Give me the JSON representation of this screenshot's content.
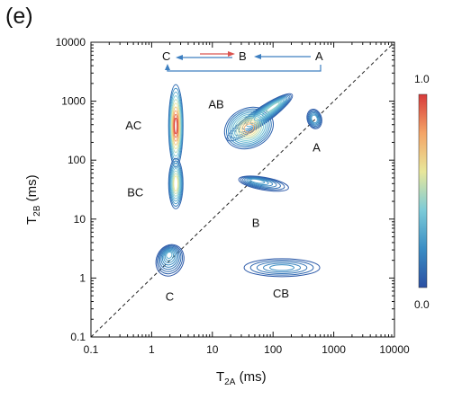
{
  "panel_label": "(e)",
  "chart_data": {
    "type": "heatmap",
    "subtype": "2D T2-T2 exchange contour map",
    "xlabel": {
      "main": "T",
      "sub": "2A",
      "unit": " (ms)"
    },
    "ylabel": {
      "main": "T",
      "sub": "2B",
      "unit": " (ms)"
    },
    "xscale": "log",
    "yscale": "log",
    "xlim": [
      0.1,
      10000
    ],
    "ylim": [
      0.1,
      10000
    ],
    "x_ticks": [
      "0.1",
      "1",
      "10",
      "100",
      "1000",
      "10000"
    ],
    "y_ticks": [
      "0.1",
      "1",
      "10",
      "100",
      "1000",
      "10000"
    ],
    "diagonal": "dashed",
    "colorbar": {
      "min": 0.0,
      "max": 1.0,
      "min_label": "0.0",
      "max_label": "1.0",
      "colormap": "blue-cyan-yellow-red",
      "placement": "right"
    },
    "peaks": [
      {
        "label": "A",
        "x": 480,
        "y": 500,
        "peak_intensity": 0.25,
        "shape": "small diagonal peak"
      },
      {
        "label": "B",
        "x": 70,
        "y": 40,
        "peak_intensity": 0.25,
        "shape": "elongated along T2A"
      },
      {
        "label": "C",
        "x": 2,
        "y": 2,
        "peak_intensity": 0.3,
        "shape": "diagonal peak"
      },
      {
        "label": "AB",
        "x": 40,
        "y": 350,
        "peak_intensity": 0.75,
        "shape": "tear-drop toward upper right"
      },
      {
        "label": "AC",
        "x": 2.5,
        "y": 380,
        "peak_intensity": 1.0,
        "shape": "vertical ridge"
      },
      {
        "label": "BC",
        "x": 2.5,
        "y": 40,
        "peak_intensity": 0.6,
        "shape": "vertical ridge"
      },
      {
        "label": "CB",
        "x": 140,
        "y": 1.5,
        "peak_intensity": 0.2,
        "shape": "flat ellipse"
      }
    ],
    "exchange_schematic": {
      "nodes": [
        "C",
        "B",
        "A"
      ],
      "arrows": [
        {
          "from": "A",
          "to": "B",
          "color": "#3d7fc1"
        },
        {
          "from": "B",
          "to": "C",
          "color": "#3d7fc1"
        },
        {
          "from": "C",
          "to": "B",
          "color": "#d9534f"
        },
        {
          "from": "A",
          "to": "C",
          "color": "#3d7fc1",
          "style": "bracket below"
        }
      ]
    }
  }
}
